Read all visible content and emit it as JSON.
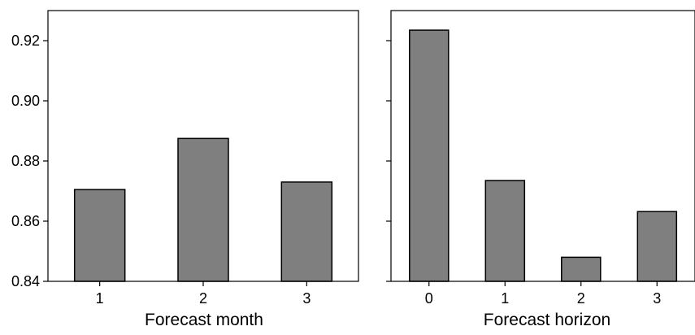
{
  "chart_data": [
    {
      "type": "bar",
      "categories": [
        "1",
        "2",
        "3"
      ],
      "values": [
        0.8705,
        0.8875,
        0.873
      ],
      "title": "",
      "xlabel": "Forecast month",
      "ylabel": "",
      "ylim": [
        0.84,
        0.93
      ],
      "yticks": [
        "0.84",
        "0.86",
        "0.88",
        "0.90",
        "0.92"
      ],
      "grid": false,
      "bar_color": "#7f7f7f",
      "edge_color": "#000000"
    },
    {
      "type": "bar",
      "categories": [
        "0",
        "1",
        "2",
        "3"
      ],
      "values": [
        0.9235,
        0.8735,
        0.848,
        0.8632
      ],
      "title": "",
      "xlabel": "Forecast horizon",
      "ylabel": "",
      "ylim": [
        0.84,
        0.93
      ],
      "yticks": [
        "0.84",
        "0.86",
        "0.88",
        "0.90",
        "0.92"
      ],
      "shared_y": true,
      "grid": false,
      "bar_color": "#7f7f7f",
      "edge_color": "#000000"
    }
  ]
}
